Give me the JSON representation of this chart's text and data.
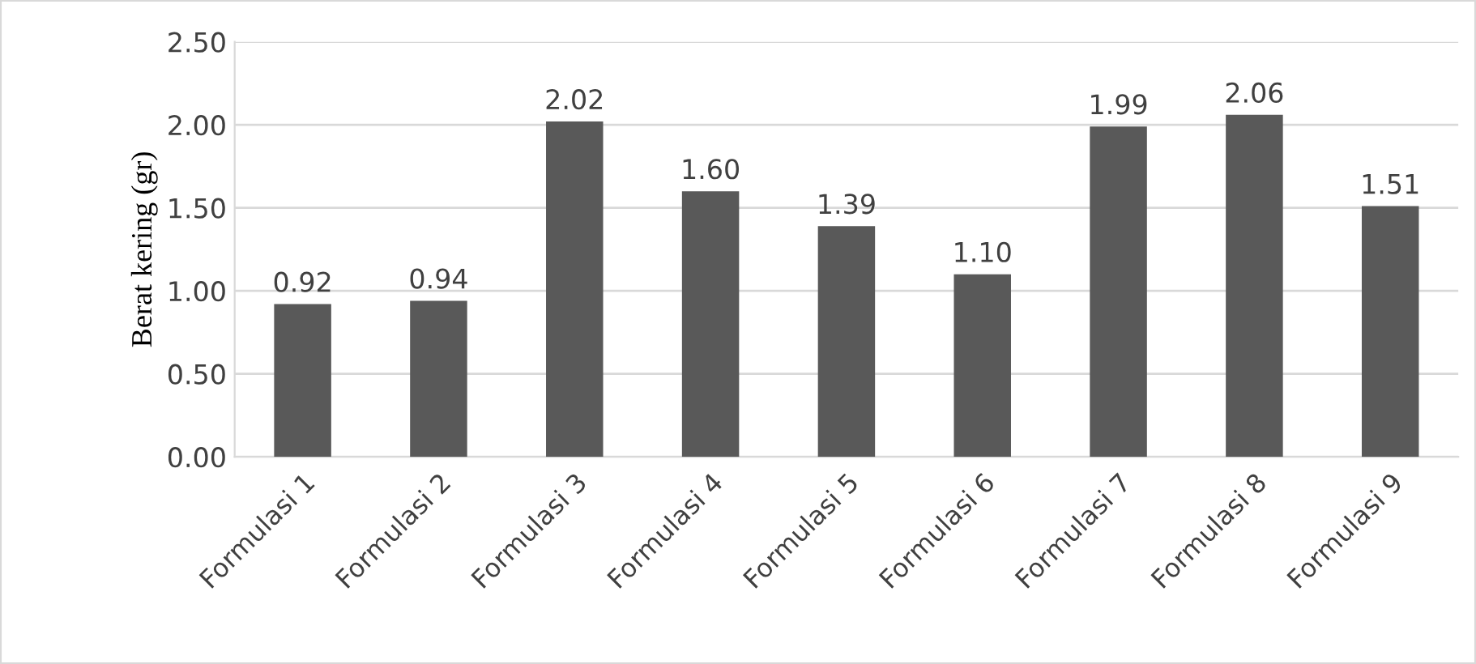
{
  "chart_data": {
    "type": "bar",
    "ylabel": "Berat kering (gr)",
    "categories": [
      "Formulasi 1",
      "Formulasi 2",
      "Formulasi 3",
      "Formulasi 4",
      "Formulasi 5",
      "Formulasi 6",
      "Formulasi 7",
      "Formulasi 8",
      "Formulasi 9"
    ],
    "values": [
      0.92,
      0.94,
      2.02,
      1.6,
      1.39,
      1.1,
      1.99,
      2.06,
      1.51
    ],
    "value_labels": [
      "0.92",
      "0.94",
      "2.02",
      "1.60",
      "1.39",
      "1.10",
      "1.99",
      "2.06",
      "1.51"
    ],
    "color": "#595959",
    "ylim": [
      0,
      2.5
    ],
    "yticks": [
      {
        "value": 0,
        "label": "0.00"
      },
      {
        "value": 0.5,
        "label": "0.50"
      },
      {
        "value": 1,
        "label": "1.00"
      },
      {
        "value": 1.5,
        "label": "1.50"
      },
      {
        "value": 2,
        "label": "2.00"
      },
      {
        "value": 2.5,
        "label": "2.50"
      }
    ],
    "grid": "y",
    "legend": false
  }
}
